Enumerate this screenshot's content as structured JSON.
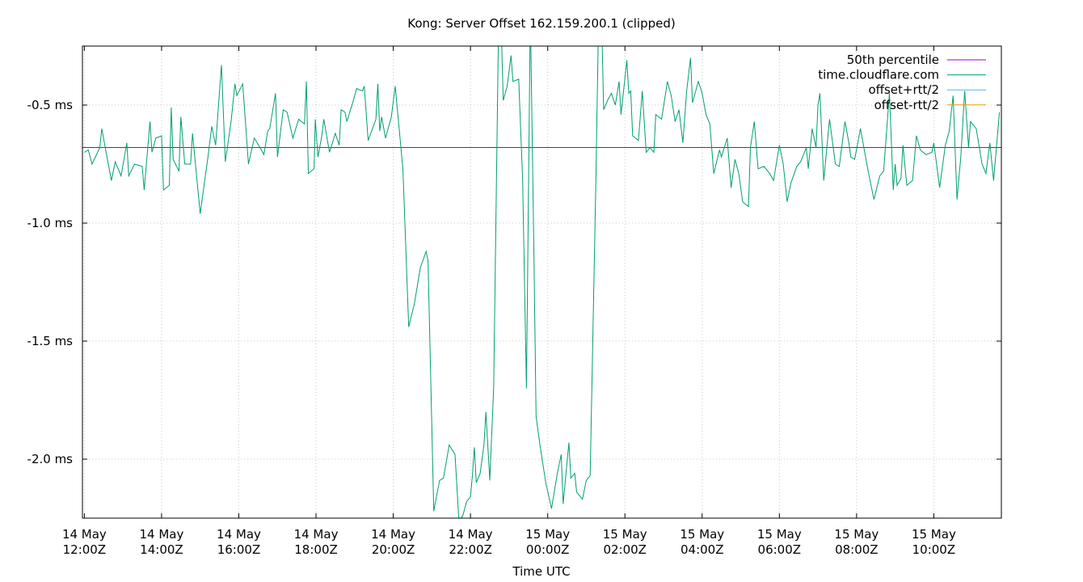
{
  "chart_data": {
    "type": "line",
    "title": "Kong: Server Offset 162.159.200.1 (clipped)",
    "xlabel": "Time UTC",
    "ylabel": "",
    "x_ticks": [
      {
        "l1": "14 May",
        "l2": "12:00Z",
        "h": 12
      },
      {
        "l1": "14 May",
        "l2": "14:00Z",
        "h": 14
      },
      {
        "l1": "14 May",
        "l2": "16:00Z",
        "h": 16
      },
      {
        "l1": "14 May",
        "l2": "18:00Z",
        "h": 18
      },
      {
        "l1": "14 May",
        "l2": "20:00Z",
        "h": 20
      },
      {
        "l1": "14 May",
        "l2": "22:00Z",
        "h": 22
      },
      {
        "l1": "15 May",
        "l2": "00:00Z",
        "h": 24
      },
      {
        "l1": "15 May",
        "l2": "02:00Z",
        "h": 26
      },
      {
        "l1": "15 May",
        "l2": "04:00Z",
        "h": 28
      },
      {
        "l1": "15 May",
        "l2": "06:00Z",
        "h": 30
      },
      {
        "l1": "15 May",
        "l2": "08:00Z",
        "h": 32
      },
      {
        "l1": "15 May",
        "l2": "10:00Z",
        "h": 34
      }
    ],
    "y_ticks": [
      {
        "v": -0.5,
        "label": "-0.5 ms"
      },
      {
        "v": -1.0,
        "label": "-1.0 ms"
      },
      {
        "v": -1.5,
        "label": "-1.5 ms"
      },
      {
        "v": -2.0,
        "label": "-2.0 ms"
      }
    ],
    "xlim": [
      11.95,
      35.75
    ],
    "ylim": [
      -2.25,
      -0.25
    ],
    "grid": true,
    "legend_position": "top-right",
    "percentile_50": -0.68,
    "series": [
      {
        "name": "50th percentile",
        "color": "#9400d3",
        "values": []
      },
      {
        "name": "time.cloudflare.com",
        "color": "#009e73",
        "values": [
          [
            12.0,
            -0.7
          ],
          [
            12.1,
            -0.69
          ],
          [
            12.2,
            -0.75
          ],
          [
            12.4,
            -0.68
          ],
          [
            12.45,
            -0.6
          ],
          [
            12.7,
            -0.82
          ],
          [
            12.8,
            -0.74
          ],
          [
            12.95,
            -0.8
          ],
          [
            13.1,
            -0.66
          ],
          [
            13.15,
            -0.8
          ],
          [
            13.3,
            -0.75
          ],
          [
            13.5,
            -0.76
          ],
          [
            13.55,
            -0.86
          ],
          [
            13.7,
            -0.57
          ],
          [
            13.75,
            -0.7
          ],
          [
            13.85,
            -0.64
          ],
          [
            14.0,
            -0.63
          ],
          [
            14.05,
            -0.86
          ],
          [
            14.2,
            -0.84
          ],
          [
            14.25,
            -0.51
          ],
          [
            14.3,
            -0.73
          ],
          [
            14.45,
            -0.78
          ],
          [
            14.5,
            -0.55
          ],
          [
            14.6,
            -0.75
          ],
          [
            14.75,
            -0.75
          ],
          [
            14.8,
            -0.62
          ],
          [
            15.0,
            -0.96
          ],
          [
            15.2,
            -0.72
          ],
          [
            15.3,
            -0.59
          ],
          [
            15.4,
            -0.67
          ],
          [
            15.55,
            -0.33
          ],
          [
            15.65,
            -0.74
          ],
          [
            15.8,
            -0.57
          ],
          [
            15.9,
            -0.41
          ],
          [
            15.95,
            -0.46
          ],
          [
            16.1,
            -0.41
          ],
          [
            16.25,
            -0.75
          ],
          [
            16.4,
            -0.64
          ],
          [
            16.55,
            -0.68
          ],
          [
            16.65,
            -0.71
          ],
          [
            16.75,
            -0.61
          ],
          [
            16.8,
            -0.6
          ],
          [
            16.95,
            -0.45
          ],
          [
            17.0,
            -0.72
          ],
          [
            17.15,
            -0.52
          ],
          [
            17.25,
            -0.53
          ],
          [
            17.4,
            -0.64
          ],
          [
            17.55,
            -0.56
          ],
          [
            17.7,
            -0.58
          ],
          [
            17.75,
            -0.4
          ],
          [
            17.8,
            -0.79
          ],
          [
            17.95,
            -0.77
          ],
          [
            17.98,
            -0.56
          ],
          [
            18.05,
            -0.72
          ],
          [
            18.15,
            -0.63
          ],
          [
            18.2,
            -0.56
          ],
          [
            18.35,
            -0.7
          ],
          [
            18.5,
            -0.62
          ],
          [
            18.6,
            -0.67
          ],
          [
            18.65,
            -0.52
          ],
          [
            18.75,
            -0.53
          ],
          [
            18.8,
            -0.57
          ],
          [
            18.95,
            -0.49
          ],
          [
            19.05,
            -0.43
          ],
          [
            19.2,
            -0.44
          ],
          [
            19.25,
            -0.42
          ],
          [
            19.35,
            -0.65
          ],
          [
            19.55,
            -0.56
          ],
          [
            19.6,
            -0.41
          ],
          [
            19.65,
            -0.61
          ],
          [
            19.7,
            -0.55
          ],
          [
            19.8,
            -0.64
          ],
          [
            19.95,
            -0.55
          ],
          [
            20.05,
            -0.42
          ],
          [
            20.25,
            -0.77
          ],
          [
            20.4,
            -1.44
          ],
          [
            20.55,
            -1.34
          ],
          [
            20.7,
            -1.19
          ],
          [
            20.85,
            -1.12
          ],
          [
            20.9,
            -1.16
          ],
          [
            21.05,
            -2.22
          ],
          [
            21.2,
            -2.09
          ],
          [
            21.3,
            -2.08
          ],
          [
            21.45,
            -1.94
          ],
          [
            21.6,
            -1.98
          ],
          [
            21.7,
            -2.26
          ],
          [
            21.8,
            -2.24
          ],
          [
            21.9,
            -2.18
          ],
          [
            22.0,
            -2.16
          ],
          [
            22.05,
            -2.07
          ],
          [
            22.1,
            -1.95
          ],
          [
            22.15,
            -2.1
          ],
          [
            22.25,
            -2.06
          ],
          [
            22.35,
            -1.94
          ],
          [
            22.4,
            -1.8
          ],
          [
            22.5,
            -2.09
          ],
          [
            22.6,
            -1.7
          ],
          [
            22.75,
            0.1
          ],
          [
            22.85,
            -0.48
          ],
          [
            22.95,
            -0.42
          ],
          [
            23.05,
            -0.29
          ],
          [
            23.1,
            -0.4
          ],
          [
            23.25,
            -0.39
          ],
          [
            23.35,
            -0.81
          ],
          [
            23.45,
            -1.7
          ],
          [
            23.55,
            -0.1
          ],
          [
            23.65,
            -1.2
          ],
          [
            23.7,
            -1.82
          ],
          [
            23.8,
            -1.94
          ],
          [
            23.95,
            -2.1
          ],
          [
            24.1,
            -2.21
          ],
          [
            24.25,
            -2.06
          ],
          [
            24.35,
            -1.98
          ],
          [
            24.4,
            -2.19
          ],
          [
            24.55,
            -1.93
          ],
          [
            24.6,
            -2.08
          ],
          [
            24.7,
            -2.06
          ],
          [
            24.75,
            -2.14
          ],
          [
            24.9,
            -2.17
          ],
          [
            25.0,
            -2.09
          ],
          [
            25.1,
            -2.07
          ],
          [
            25.15,
            -1.65
          ],
          [
            25.25,
            -0.8
          ],
          [
            25.35,
            0.2
          ],
          [
            25.45,
            -0.52
          ],
          [
            25.55,
            -0.48
          ],
          [
            25.65,
            -0.45
          ],
          [
            25.75,
            -0.5
          ],
          [
            25.85,
            -0.4
          ],
          [
            25.9,
            -0.54
          ],
          [
            26.05,
            -0.31
          ],
          [
            26.1,
            -0.45
          ],
          [
            26.15,
            -0.44
          ],
          [
            26.2,
            -0.63
          ],
          [
            26.35,
            -0.65
          ],
          [
            26.45,
            -0.44
          ],
          [
            26.55,
            -0.7
          ],
          [
            26.65,
            -0.68
          ],
          [
            26.75,
            -0.7
          ],
          [
            26.8,
            -0.54
          ],
          [
            26.95,
            -0.56
          ],
          [
            27.1,
            -0.4
          ],
          [
            27.2,
            -0.46
          ],
          [
            27.3,
            -0.57
          ],
          [
            27.4,
            -0.52
          ],
          [
            27.5,
            -0.66
          ],
          [
            27.6,
            -0.44
          ],
          [
            27.7,
            -0.3
          ],
          [
            27.75,
            -0.49
          ],
          [
            27.9,
            -0.4
          ],
          [
            28.0,
            -0.45
          ],
          [
            28.1,
            -0.54
          ],
          [
            28.2,
            -0.58
          ],
          [
            28.3,
            -0.79
          ],
          [
            28.45,
            -0.69
          ],
          [
            28.5,
            -0.72
          ],
          [
            28.65,
            -0.64
          ],
          [
            28.75,
            -0.85
          ],
          [
            28.85,
            -0.73
          ],
          [
            28.95,
            -0.79
          ],
          [
            29.05,
            -0.91
          ],
          [
            29.2,
            -0.93
          ],
          [
            29.25,
            -0.68
          ],
          [
            29.35,
            -0.57
          ],
          [
            29.45,
            -0.77
          ],
          [
            29.6,
            -0.76
          ],
          [
            29.75,
            -0.79
          ],
          [
            29.85,
            -0.82
          ],
          [
            30.0,
            -0.67
          ],
          [
            30.1,
            -0.75
          ],
          [
            30.2,
            -0.91
          ],
          [
            30.3,
            -0.83
          ],
          [
            30.45,
            -0.76
          ],
          [
            30.55,
            -0.74
          ],
          [
            30.7,
            -0.68
          ],
          [
            30.75,
            -0.77
          ],
          [
            30.85,
            -0.6
          ],
          [
            30.9,
            -0.64
          ],
          [
            30.95,
            -0.68
          ],
          [
            31.0,
            -0.5
          ],
          [
            31.05,
            -0.45
          ],
          [
            31.15,
            -0.82
          ],
          [
            31.3,
            -0.56
          ],
          [
            31.45,
            -0.75
          ],
          [
            31.55,
            -0.76
          ],
          [
            31.7,
            -0.57
          ],
          [
            31.8,
            -0.66
          ],
          [
            31.85,
            -0.72
          ],
          [
            31.95,
            -0.73
          ],
          [
            32.1,
            -0.6
          ],
          [
            32.2,
            -0.69
          ],
          [
            32.3,
            -0.78
          ],
          [
            32.45,
            -0.9
          ],
          [
            32.6,
            -0.8
          ],
          [
            32.7,
            -0.78
          ],
          [
            32.85,
            -0.45
          ],
          [
            32.95,
            -0.86
          ],
          [
            33.0,
            -0.75
          ],
          [
            33.05,
            -0.84
          ],
          [
            33.15,
            -0.81
          ],
          [
            33.2,
            -0.67
          ],
          [
            33.3,
            -0.84
          ],
          [
            33.45,
            -0.82
          ],
          [
            33.55,
            -0.63
          ],
          [
            33.65,
            -0.69
          ],
          [
            33.8,
            -0.71
          ],
          [
            33.95,
            -0.7
          ],
          [
            34.0,
            -0.66
          ],
          [
            34.15,
            -0.85
          ],
          [
            34.3,
            -0.67
          ],
          [
            34.4,
            -0.61
          ],
          [
            34.5,
            -0.46
          ],
          [
            34.6,
            -0.9
          ],
          [
            34.7,
            -0.72
          ],
          [
            34.8,
            -0.44
          ],
          [
            34.9,
            -0.68
          ],
          [
            34.95,
            -0.57
          ],
          [
            35.1,
            -0.6
          ],
          [
            35.25,
            -0.75
          ],
          [
            35.35,
            -0.79
          ],
          [
            35.45,
            -0.66
          ],
          [
            35.55,
            -0.82
          ],
          [
            35.7,
            -0.53
          ]
        ]
      },
      {
        "name": "offset+rtt/2",
        "color": "#56b4e9",
        "values": []
      },
      {
        "name": "offset-rtt/2",
        "color": "#e69f00",
        "values": []
      }
    ]
  }
}
